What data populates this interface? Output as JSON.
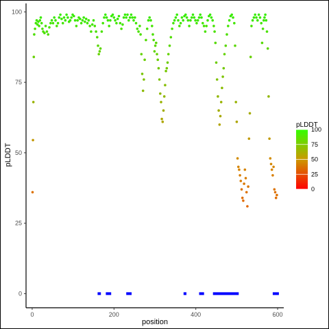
{
  "chart_data": {
    "type": "scatter",
    "title": "",
    "xlabel": "position",
    "ylabel": "pLDDT",
    "xlim": [
      -15,
      615
    ],
    "ylim": [
      -5,
      103
    ],
    "x_ticks": [
      0,
      200,
      400,
      600
    ],
    "y_ticks": [
      0,
      25,
      50,
      75,
      100
    ],
    "grid": false,
    "legend": {
      "title": "pLDDT",
      "placement": "right",
      "ticks": [
        0,
        25,
        50,
        75,
        100
      ],
      "gradient": [
        "#ff0000",
        "#cc9900",
        "#33ff00"
      ]
    },
    "colors": {
      "low": "#ff2200",
      "mid": "#d09000",
      "high": "#33ee00",
      "segment": "#0000ff"
    },
    "points": [
      [
        1,
        36
      ],
      [
        2,
        54.5
      ],
      [
        3,
        68
      ],
      [
        4,
        84
      ],
      [
        5,
        92
      ],
      [
        7,
        94
      ],
      [
        9,
        96
      ],
      [
        11,
        97
      ],
      [
        13,
        95.5
      ],
      [
        15,
        96.5
      ],
      [
        17,
        95
      ],
      [
        19,
        97
      ],
      [
        21,
        98
      ],
      [
        23,
        96
      ],
      [
        25,
        94
      ],
      [
        27,
        93
      ],
      [
        30,
        92.5
      ],
      [
        33,
        95
      ],
      [
        36,
        93
      ],
      [
        39,
        92
      ],
      [
        42,
        94.5
      ],
      [
        45,
        96
      ],
      [
        48,
        97
      ],
      [
        51,
        96
      ],
      [
        54,
        98
      ],
      [
        57,
        97
      ],
      [
        60,
        95
      ],
      [
        63,
        96
      ],
      [
        66,
        98
      ],
      [
        69,
        99
      ],
      [
        72,
        97.5
      ],
      [
        75,
        96
      ],
      [
        78,
        98
      ],
      [
        81,
        97
      ],
      [
        84,
        99
      ],
      [
        87,
        98
      ],
      [
        90,
        96.5
      ],
      [
        93,
        97
      ],
      [
        96,
        98
      ],
      [
        99,
        99
      ],
      [
        102,
        98.5
      ],
      [
        105,
        97
      ],
      [
        108,
        95
      ],
      [
        111,
        97
      ],
      [
        114,
        98
      ],
      [
        117,
        97.5
      ],
      [
        120,
        96
      ],
      [
        123,
        97
      ],
      [
        126,
        98
      ],
      [
        129,
        96.5
      ],
      [
        132,
        97.5
      ],
      [
        135,
        96
      ],
      [
        138,
        97
      ],
      [
        141,
        95
      ],
      [
        144,
        93
      ],
      [
        147,
        95.5
      ],
      [
        150,
        97
      ],
      [
        153,
        95
      ],
      [
        156,
        93
      ],
      [
        159,
        91
      ],
      [
        161,
        88
      ],
      [
        163,
        85
      ],
      [
        165,
        86
      ],
      [
        167,
        87
      ],
      [
        170,
        93
      ],
      [
        173,
        96
      ],
      [
        176,
        98
      ],
      [
        179,
        99
      ],
      [
        182,
        98
      ],
      [
        185,
        97
      ],
      [
        188,
        95
      ],
      [
        191,
        97
      ],
      [
        194,
        98.5
      ],
      [
        197,
        99
      ],
      [
        200,
        98
      ],
      [
        203,
        97
      ],
      [
        206,
        96
      ],
      [
        209,
        97.5
      ],
      [
        212,
        98.5
      ],
      [
        215,
        96
      ],
      [
        218,
        94
      ],
      [
        221,
        95.5
      ],
      [
        224,
        98
      ],
      [
        227,
        99
      ],
      [
        230,
        98
      ],
      [
        233,
        99
      ],
      [
        236,
        97
      ],
      [
        239,
        98
      ],
      [
        242,
        99
      ],
      [
        245,
        98
      ],
      [
        248,
        97
      ],
      [
        251,
        98
      ],
      [
        254,
        96
      ],
      [
        257,
        94
      ],
      [
        260,
        93
      ],
      [
        263,
        95
      ],
      [
        265,
        92
      ],
      [
        267,
        85
      ],
      [
        269,
        78
      ],
      [
        271,
        72
      ],
      [
        273,
        76
      ],
      [
        275,
        83
      ],
      [
        278,
        90
      ],
      [
        281,
        94
      ],
      [
        284,
        97
      ],
      [
        287,
        98
      ],
      [
        290,
        97
      ],
      [
        293,
        95
      ],
      [
        295,
        92
      ],
      [
        297,
        90
      ],
      [
        299,
        86
      ],
      [
        301,
        88
      ],
      [
        303,
        89
      ],
      [
        305,
        85
      ],
      [
        307,
        83
      ],
      [
        309,
        80
      ],
      [
        311,
        76
      ],
      [
        313,
        71
      ],
      [
        315,
        68
      ],
      [
        317,
        62
      ],
      [
        319,
        61
      ],
      [
        321,
        65
      ],
      [
        323,
        70
      ],
      [
        325,
        74
      ],
      [
        327,
        79
      ],
      [
        329,
        80
      ],
      [
        331,
        82
      ],
      [
        333,
        85
      ],
      [
        336,
        88
      ],
      [
        339,
        91
      ],
      [
        342,
        94
      ],
      [
        345,
        96
      ],
      [
        348,
        97
      ],
      [
        351,
        98
      ],
      [
        354,
        99
      ],
      [
        357,
        97
      ],
      [
        360,
        95
      ],
      [
        363,
        96
      ],
      [
        366,
        98
      ],
      [
        369,
        97
      ],
      [
        372,
        98.5
      ],
      [
        375,
        99
      ],
      [
        378,
        98
      ],
      [
        381,
        97
      ],
      [
        384,
        95
      ],
      [
        387,
        97
      ],
      [
        390,
        98
      ],
      [
        393,
        99
      ],
      [
        396,
        98
      ],
      [
        399,
        97
      ],
      [
        402,
        96
      ],
      [
        405,
        97
      ],
      [
        408,
        98
      ],
      [
        411,
        99
      ],
      [
        414,
        98
      ],
      [
        417,
        96
      ],
      [
        420,
        95
      ],
      [
        423,
        93
      ],
      [
        426,
        95
      ],
      [
        429,
        97
      ],
      [
        432,
        98.5
      ],
      [
        435,
        99
      ],
      [
        438,
        98
      ],
      [
        441,
        97
      ],
      [
        444,
        95
      ],
      [
        446,
        93
      ],
      [
        448,
        89
      ],
      [
        450,
        82
      ],
      [
        452,
        76
      ],
      [
        454,
        70
      ],
      [
        456,
        65
      ],
      [
        458,
        60
      ],
      [
        460,
        63
      ],
      [
        462,
        68
      ],
      [
        464,
        73
      ],
      [
        466,
        77
      ],
      [
        468,
        80
      ],
      [
        470,
        85
      ],
      [
        473,
        88
      ],
      [
        476,
        92
      ],
      [
        479,
        95
      ],
      [
        482,
        97
      ],
      [
        485,
        98.5
      ],
      [
        488,
        99
      ],
      [
        491,
        98
      ],
      [
        494,
        96
      ],
      [
        496,
        88
      ],
      [
        498,
        68
      ],
      [
        500,
        61
      ],
      [
        502,
        48
      ],
      [
        504,
        45
      ],
      [
        506,
        44
      ],
      [
        508,
        42
      ],
      [
        510,
        40
      ],
      [
        512,
        37
      ],
      [
        514,
        34
      ],
      [
        516,
        33
      ],
      [
        518,
        39
      ],
      [
        520,
        44
      ],
      [
        522,
        41
      ],
      [
        524,
        36
      ],
      [
        526,
        31
      ],
      [
        528,
        38
      ],
      [
        530,
        55
      ],
      [
        532,
        64
      ],
      [
        534,
        84
      ],
      [
        536,
        95
      ],
      [
        539,
        97
      ],
      [
        542,
        98
      ],
      [
        545,
        99
      ],
      [
        548,
        98
      ],
      [
        551,
        97
      ],
      [
        554,
        99
      ],
      [
        557,
        98
      ],
      [
        560,
        96
      ],
      [
        562,
        89
      ],
      [
        564,
        94
      ],
      [
        566,
        97
      ],
      [
        568,
        98
      ],
      [
        570,
        99
      ],
      [
        572,
        97
      ],
      [
        574,
        93
      ],
      [
        576,
        87
      ],
      [
        578,
        70
      ],
      [
        580,
        55
      ],
      [
        582,
        48
      ],
      [
        584,
        46
      ],
      [
        586,
        44
      ],
      [
        588,
        42
      ],
      [
        590,
        45
      ],
      [
        592,
        37
      ],
      [
        594,
        36
      ],
      [
        596,
        34
      ],
      [
        598,
        35
      ]
    ],
    "segments": [
      [
        160,
        168
      ],
      [
        180,
        193
      ],
      [
        230,
        243
      ],
      [
        370,
        377
      ],
      [
        408,
        420
      ],
      [
        442,
        505
      ],
      [
        588,
        603
      ]
    ]
  }
}
